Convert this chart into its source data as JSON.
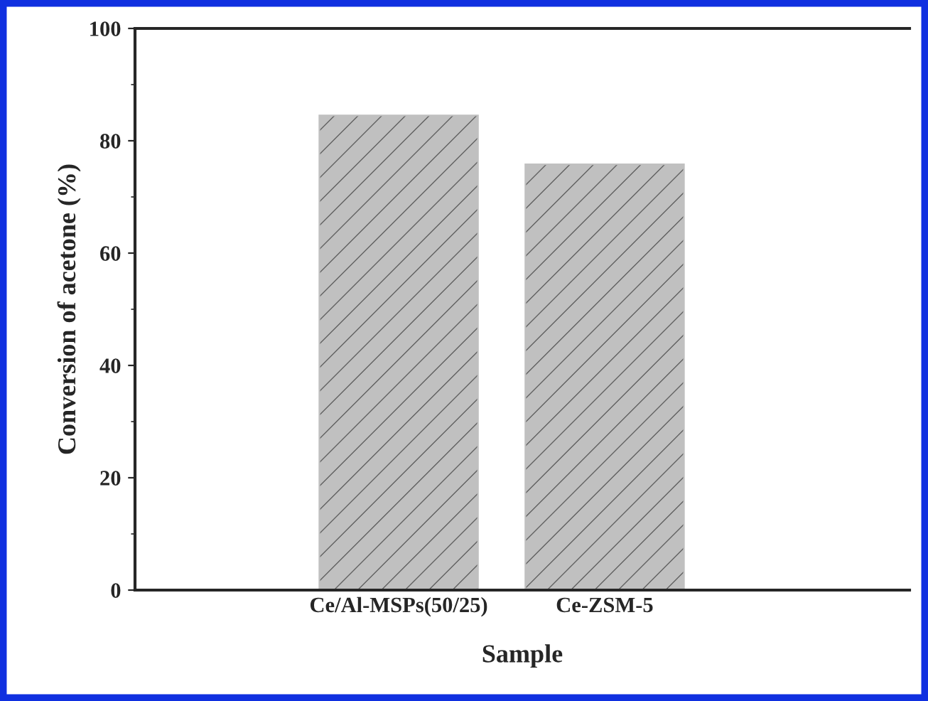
{
  "chart_data": {
    "type": "bar",
    "xlabel": "Sample",
    "ylabel": "Conversion of acetone (%)",
    "categories": [
      "Ce/Al-MSPs(50/25)",
      "Ce-ZSM-5"
    ],
    "values": [
      84.5,
      75.8
    ],
    "color": "#c0c0c0",
    "ylim": [
      0,
      100
    ],
    "yticks": [
      0,
      20,
      40,
      60,
      80,
      100
    ],
    "grid": false,
    "legend": false
  }
}
